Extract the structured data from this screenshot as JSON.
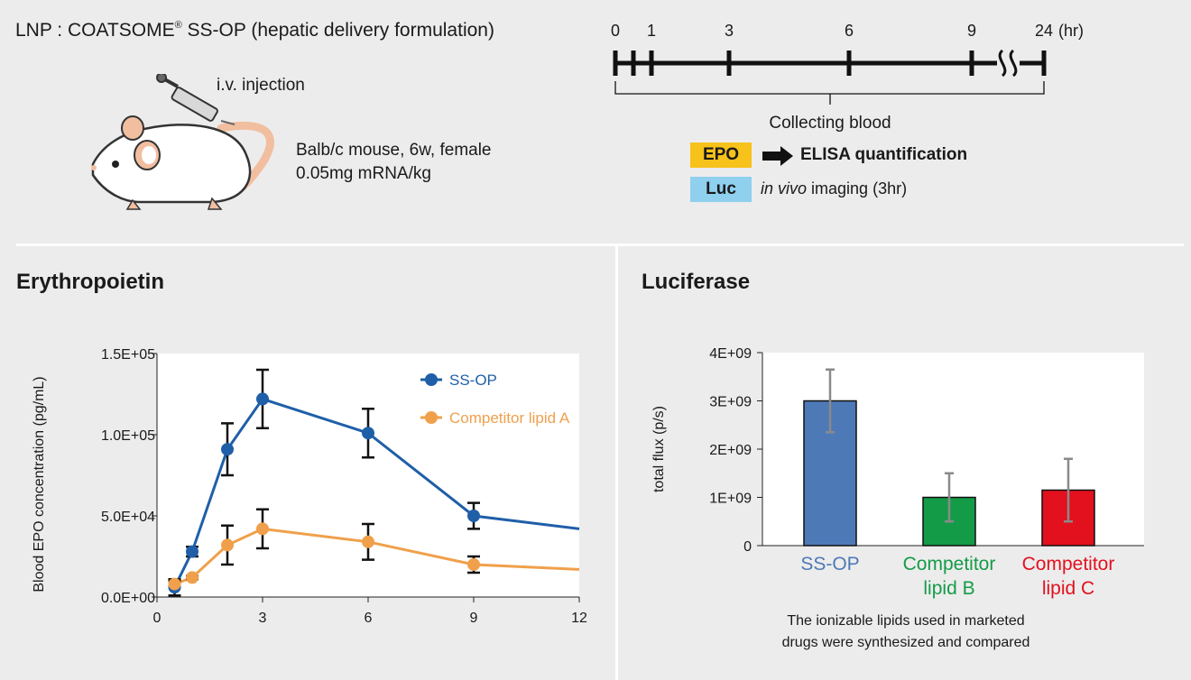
{
  "header": {
    "title_prefix": "LNP : COATSOME",
    "title_reg": "®",
    "title_suffix": " SS-OP (hepatic delivery formulation)",
    "injection_label": "i.v. injection",
    "mouse_line1": "Balb/c mouse, 6w, female",
    "mouse_line2": "0.05mg mRNA/kg"
  },
  "timeline": {
    "ticks": [
      "0",
      "1",
      "3",
      "6",
      "9",
      "24"
    ],
    "unit": "(hr)",
    "collect_label": "Collecting blood",
    "epo_tag": "EPO",
    "epo_method": "ELISA quantification",
    "luc_tag": "Luc",
    "luc_method_italic": "in vivo",
    "luc_method_rest": " imaging (3hr)",
    "colors": {
      "epo": "#f7c21a",
      "luc": "#8fd0ef"
    }
  },
  "sections": {
    "epo_title": "Erythropoietin",
    "luc_title": "Luciferase",
    "luc_note_line1": "The ionizable lipids used in marketed",
    "luc_note_line2": "drugs were synthesized and compared"
  },
  "chart_data": [
    {
      "type": "line",
      "title": "Erythropoietin",
      "xlabel": "",
      "ylabel": "Blood EPO concentration (pg/mL)",
      "xlim": [
        0,
        12
      ],
      "ylim": [
        0,
        150000
      ],
      "xticks": [
        "0",
        "3",
        "6",
        "9",
        "12"
      ],
      "yticks": [
        "0.0E+00",
        "5.0E+04",
        "1.0E+05",
        "1.5E+05"
      ],
      "grid": false,
      "legend_position": "top-right",
      "series": [
        {
          "name": "SS-OP",
          "color": "#1f5fa8",
          "x": [
            0.5,
            1,
            2,
            3,
            6,
            9
          ],
          "values": [
            6000,
            28000,
            91000,
            122000,
            101000,
            50000
          ],
          "err": [
            5000,
            3000,
            16000,
            18000,
            15000,
            8000
          ],
          "tail_value": 42000
        },
        {
          "name": "Competitor lipid A",
          "color": "#f0a04b",
          "x": [
            0.5,
            1,
            2,
            3,
            6,
            9
          ],
          "values": [
            8000,
            12000,
            32000,
            42000,
            34000,
            20000
          ],
          "err": [
            2000,
            1000,
            12000,
            12000,
            11000,
            5000
          ],
          "tail_value": 17000
        }
      ]
    },
    {
      "type": "bar",
      "title": "Luciferase",
      "xlabel": "",
      "ylabel": "total flux (p/s)",
      "ylim": [
        0,
        4000000000
      ],
      "yticks": [
        "0",
        "1E+09",
        "2E+09",
        "3E+09",
        "4E+09"
      ],
      "grid": false,
      "categories": [
        "SS-OP",
        "Competitor lipid B",
        "Competitor lipid C"
      ],
      "category_lines": [
        [
          "SS-OP"
        ],
        [
          "Competitor",
          "lipid B"
        ],
        [
          "Competitor",
          "lipid C"
        ]
      ],
      "values": [
        3000000000,
        1000000000,
        1150000000
      ],
      "err": [
        650000000,
        500000000,
        650000000
      ],
      "colors": [
        "#4e79b7",
        "#149b48",
        "#e3101e"
      ],
      "label_colors": [
        "#4e79b7",
        "#149b48",
        "#e3101e"
      ]
    }
  ]
}
